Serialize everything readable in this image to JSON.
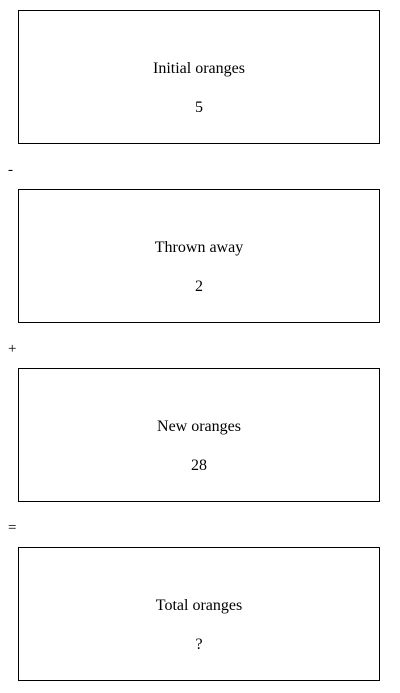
{
  "steps": [
    {
      "label": "Initial oranges",
      "value": "5"
    },
    {
      "label": "Thrown away",
      "value": "2"
    },
    {
      "label": "New oranges",
      "value": "28"
    },
    {
      "label": "Total oranges",
      "value": "?"
    }
  ],
  "operators": [
    "-",
    "+",
    "="
  ]
}
